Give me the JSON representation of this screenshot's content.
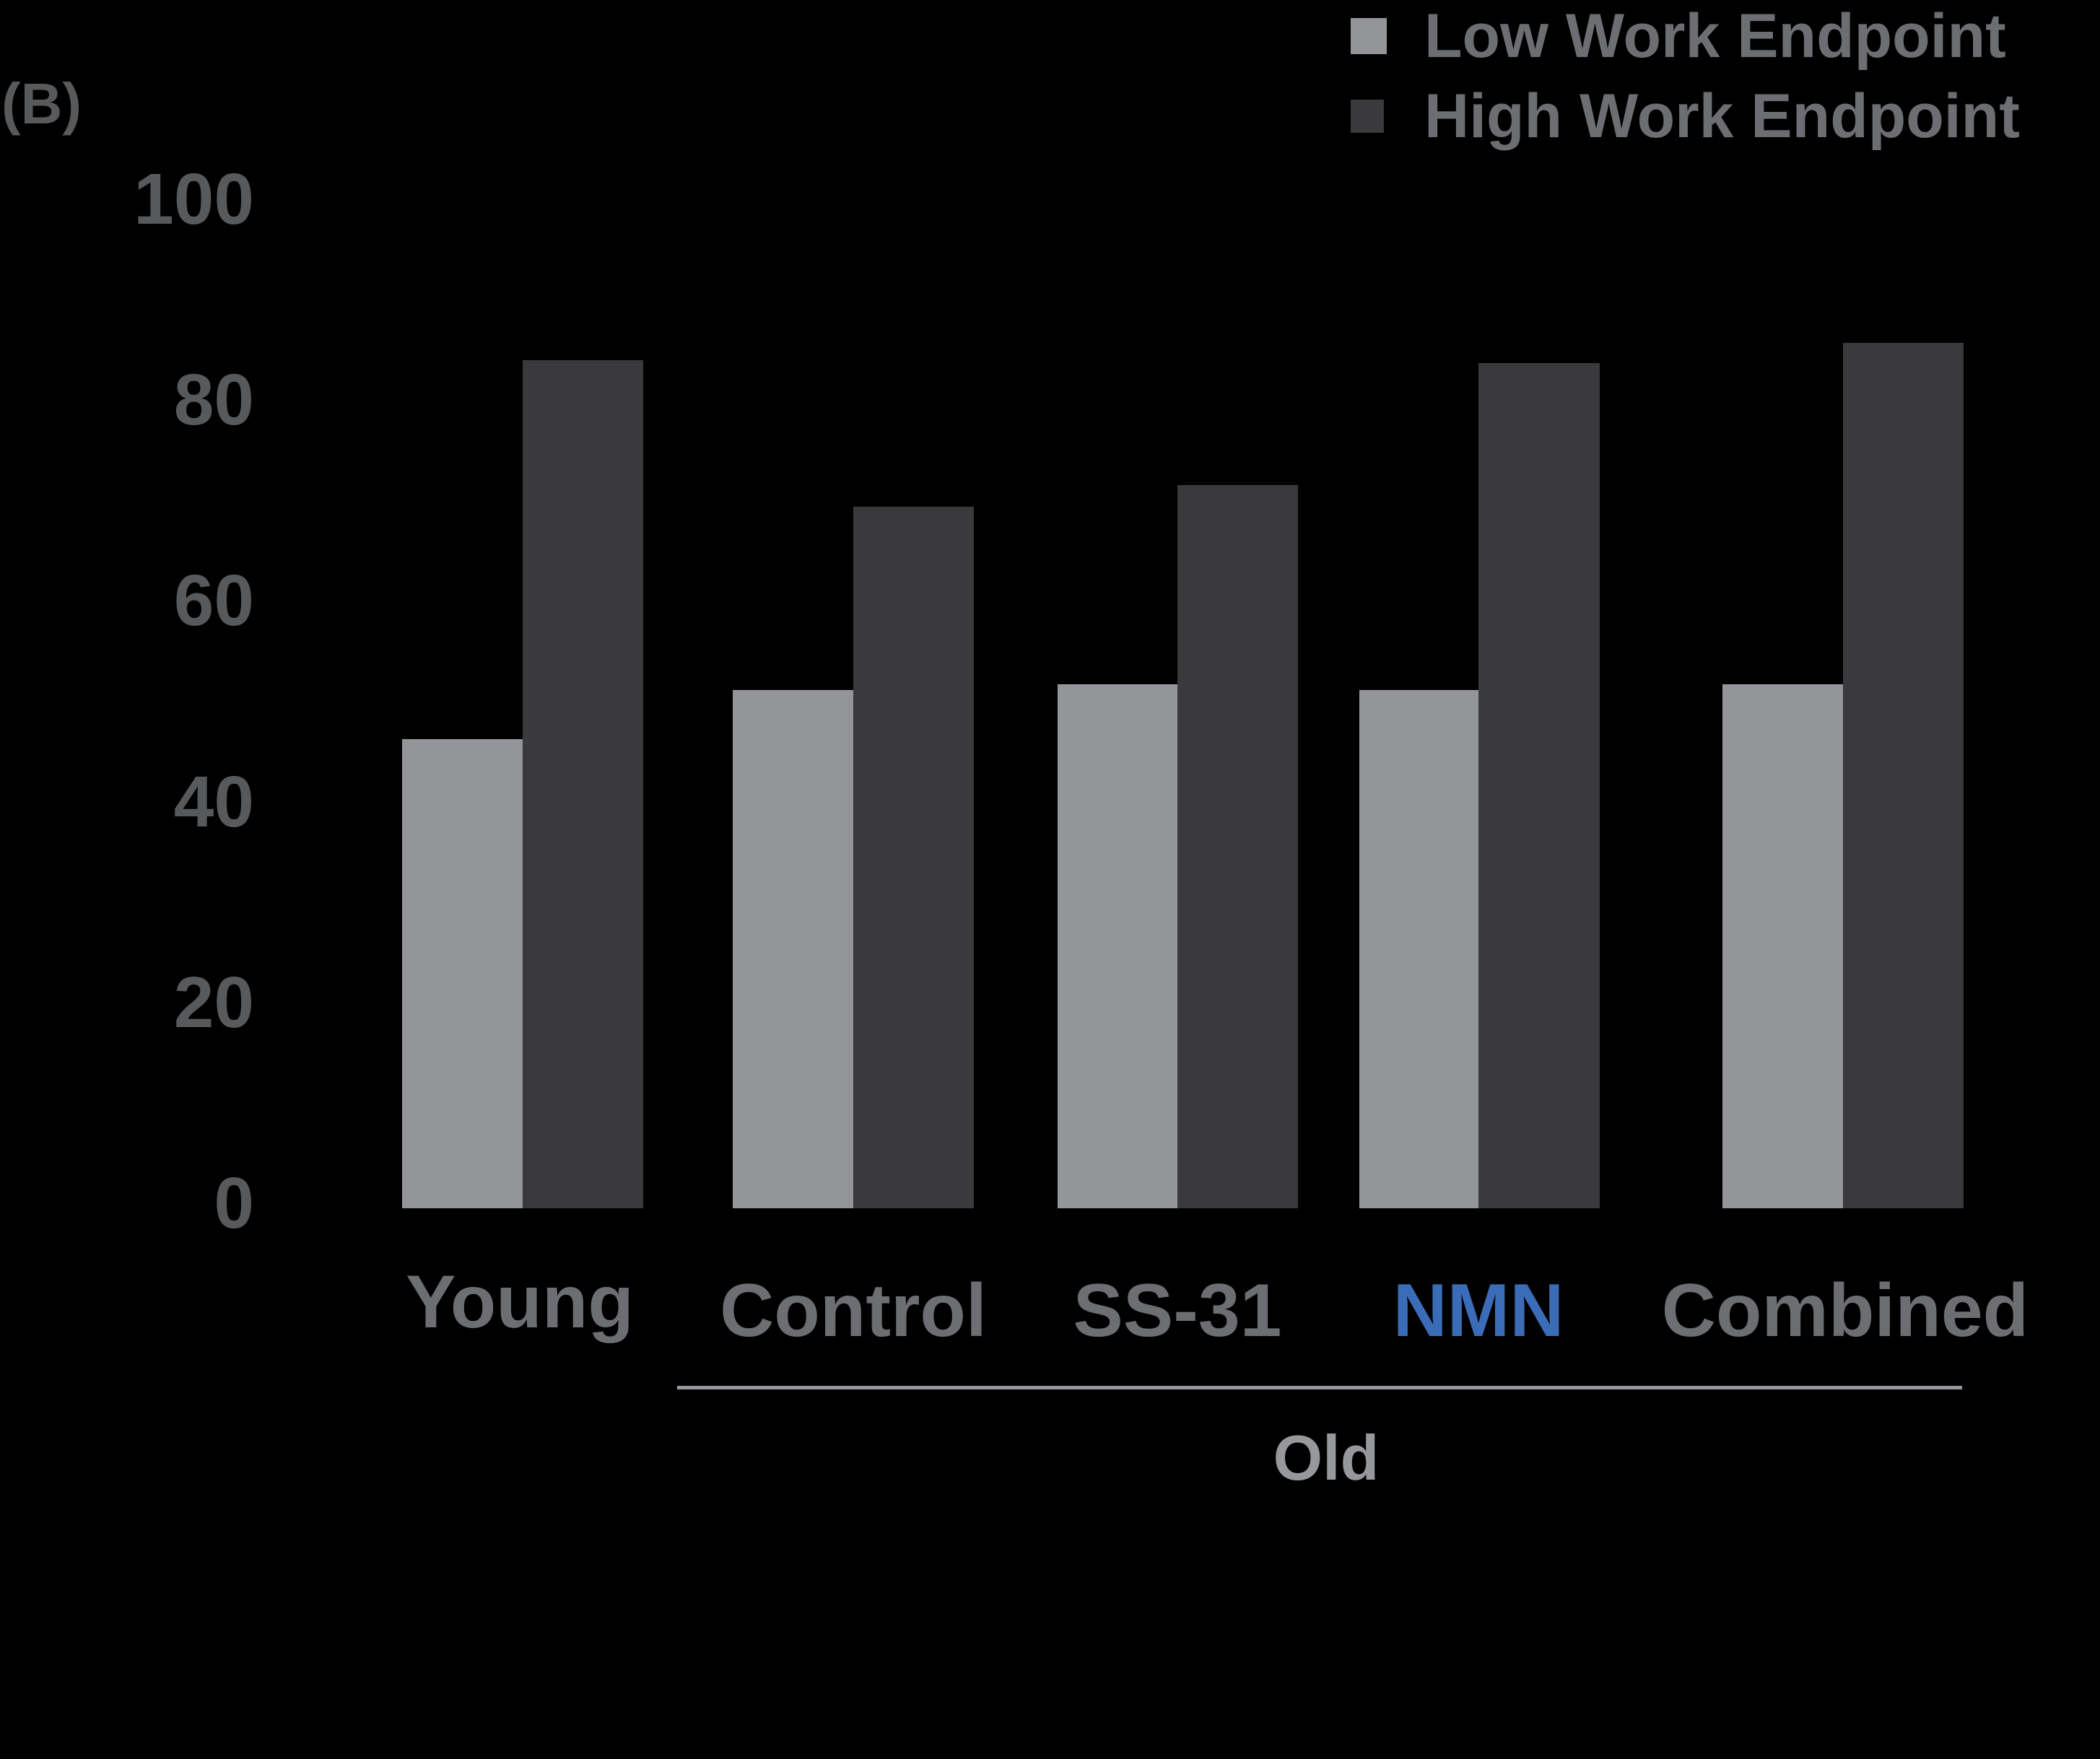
{
  "panel_label": "(B)",
  "colors": {
    "low": "#939598",
    "high": "#3a3a3c",
    "text": "#6d6e71",
    "tick": "#58595b",
    "highlight": "#3b6cb7",
    "bracket": "#97989b"
  },
  "legend": [
    {
      "label": "Low Work Endpoint",
      "color": "#939598"
    },
    {
      "label": "High Work Endpoint",
      "color": "#3a3a3c"
    }
  ],
  "y_ticks": [
    "100",
    "80",
    "60",
    "40",
    "20",
    "0"
  ],
  "group_label": "Old",
  "chart_data": {
    "type": "bar",
    "title": "",
    "xlabel": "",
    "ylabel": "",
    "ylim": [
      0,
      100
    ],
    "yticks": [
      0,
      20,
      40,
      60,
      80,
      100
    ],
    "grid": false,
    "legend_position": "top-right",
    "categories": [
      "Young",
      "Control",
      "SS-31",
      "NMN",
      "Combined"
    ],
    "highlighted_category": "NMN",
    "category_groups": [
      {
        "label": "Old",
        "members": [
          "Control",
          "SS-31",
          "NMN",
          "Combined"
        ]
      }
    ],
    "series": [
      {
        "name": "Low Work Endpoint",
        "color": "#939598",
        "values": [
          46.7,
          51.6,
          52.2,
          51.6,
          52.2
        ]
      },
      {
        "name": "High Work Endpoint",
        "color": "#3a3a3c",
        "values": [
          84.5,
          69.9,
          72.0,
          84.2,
          86.2
        ]
      }
    ]
  }
}
